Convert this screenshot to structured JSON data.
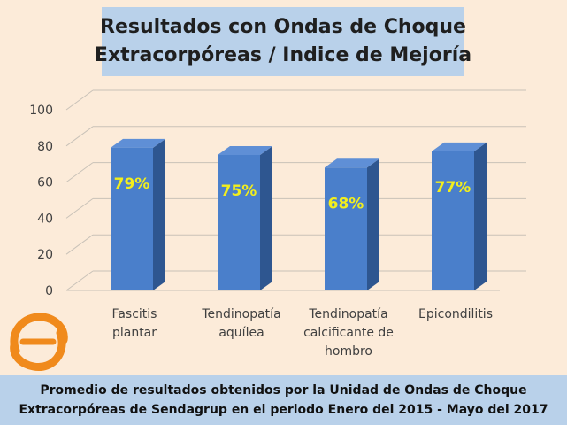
{
  "title": {
    "line1": "Resultados con Ondas de Choque",
    "line2": "Extracorpóreas / Indice de Mejoría"
  },
  "footer": {
    "line1": "Promedio de resultados obtenidos por la Unidad de Ondas de Choque",
    "line2": "Extracorpóreas de Sendagrup en el periodo Enero del 2015 - Mayo del 2017"
  },
  "logo": {
    "icon": "sendagrup-logo-icon"
  },
  "colors": {
    "bar_front": "#4a7fcb",
    "bar_side": "#2e5690",
    "bar_top": "#5f8fd6",
    "label_text": "#f2ee1d",
    "background": "#fcebd9",
    "box": "#b9d1ea",
    "logo": "#f08a1c"
  },
  "chart_data": {
    "type": "bar",
    "categories": [
      [
        "Fascitis",
        "plantar"
      ],
      [
        "Tendinopatía",
        "aquílea"
      ],
      [
        "Tendinopatía",
        "calcificante de",
        "hombro"
      ],
      [
        "Epicondilitis"
      ]
    ],
    "values": [
      79,
      75,
      68,
      77
    ],
    "data_labels": [
      "79%",
      "75%",
      "68%",
      "77%"
    ],
    "yticks": [
      "0",
      "20",
      "40",
      "60",
      "80",
      "100"
    ],
    "ylim": [
      0,
      100
    ],
    "grid": true,
    "legend": "none",
    "three_d": true
  }
}
